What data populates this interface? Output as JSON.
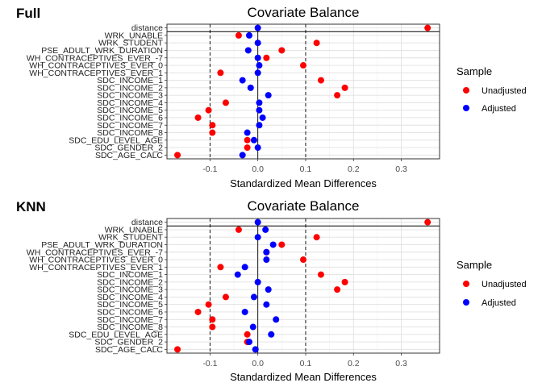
{
  "colors": {
    "unadjusted": "#ff0000",
    "adjusted": "#0000ff"
  },
  "legend": {
    "title": "Sample",
    "items": [
      {
        "label": "Unadjusted",
        "color": "#ff0000"
      },
      {
        "label": "Adjusted",
        "color": "#0000ff"
      }
    ]
  },
  "chart_data": [
    {
      "type": "scatter",
      "tag": "Full",
      "title": "Covariate Balance",
      "xlabel": "Standardized Mean Differences",
      "ylabel": "",
      "xlim": [
        -0.19,
        0.38
      ],
      "xticks": [
        -0.1,
        0.0,
        0.1,
        0.2,
        0.3
      ],
      "xtick_labels": [
        "-0.1",
        "0.0",
        "0.1",
        "0.2",
        "0.3"
      ],
      "threshold_lines": [
        -0.1,
        0.1
      ],
      "zero_line": 0,
      "grid": true,
      "legend_position": "right",
      "categories": [
        "distance",
        "WRK_UNABLE",
        "WRK_STUDENT",
        "PSE_ADULT_WRK_DURATION",
        "WH_CONTRACEPTIVES_EVER_-7",
        "WH_CONTRACEPTIVES_EVER_0",
        "WH_CONTRACEPTIVES_EVER_1",
        "SDC_INCOME_1",
        "SDC_INCOME_2",
        "SDC_INCOME_3",
        "SDC_INCOME_4",
        "SDC_INCOME_5",
        "SDC_INCOME_6",
        "SDC_INCOME_7",
        "SDC_INCOME_8",
        "SDC_EDU_LEVEL_AGE",
        "SDC_GENDER_2",
        "SDC_AGE_CALC"
      ],
      "series": [
        {
          "name": "Unadjusted",
          "values": [
            0.355,
            -0.04,
            0.123,
            0.05,
            0.018,
            0.095,
            -0.078,
            0.132,
            0.182,
            0.166,
            -0.067,
            -0.103,
            -0.125,
            -0.095,
            -0.095,
            -0.022,
            -0.022,
            -0.168
          ]
        },
        {
          "name": "Adjusted",
          "values": [
            0.0,
            -0.018,
            0.0,
            -0.02,
            0.0,
            0.003,
            0.0,
            -0.032,
            -0.015,
            0.022,
            0.003,
            0.003,
            0.01,
            0.003,
            -0.022,
            -0.008,
            0.0,
            -0.032
          ]
        }
      ]
    },
    {
      "type": "scatter",
      "tag": "KNN",
      "title": "Covariate Balance",
      "xlabel": "Standardized Mean Differences",
      "ylabel": "",
      "xlim": [
        -0.19,
        0.38
      ],
      "xticks": [
        -0.1,
        0.0,
        0.1,
        0.2,
        0.3
      ],
      "xtick_labels": [
        "-0.1",
        "0.0",
        "0.1",
        "0.2",
        "0.3"
      ],
      "threshold_lines": [
        -0.1,
        0.1
      ],
      "zero_line": 0,
      "grid": true,
      "legend_position": "right",
      "categories": [
        "distance",
        "WRK_UNABLE",
        "WRK_STUDENT",
        "PSE_ADULT_WRK_DURATION",
        "WH_CONTRACEPTIVES_EVER_-7",
        "WH_CONTRACEPTIVES_EVER_0",
        "WH_CONTRACEPTIVES_EVER_1",
        "SDC_INCOME_1",
        "SDC_INCOME_2",
        "SDC_INCOME_3",
        "SDC_INCOME_4",
        "SDC_INCOME_5",
        "SDC_INCOME_6",
        "SDC_INCOME_7",
        "SDC_INCOME_8",
        "SDC_EDU_LEVEL_AGE",
        "SDC_GENDER_2",
        "SDC_AGE_CALC"
      ],
      "series": [
        {
          "name": "Unadjusted",
          "values": [
            0.355,
            -0.04,
            0.123,
            0.05,
            0.018,
            0.095,
            -0.078,
            0.132,
            0.182,
            0.166,
            -0.067,
            -0.103,
            -0.125,
            -0.095,
            -0.095,
            -0.022,
            -0.022,
            -0.168
          ]
        },
        {
          "name": "Adjusted",
          "values": [
            0.0,
            0.016,
            0.0,
            0.032,
            0.018,
            0.018,
            -0.027,
            -0.042,
            0.0,
            0.022,
            -0.008,
            0.018,
            -0.027,
            0.038,
            -0.01,
            0.028,
            -0.018,
            -0.005
          ]
        }
      ]
    }
  ]
}
